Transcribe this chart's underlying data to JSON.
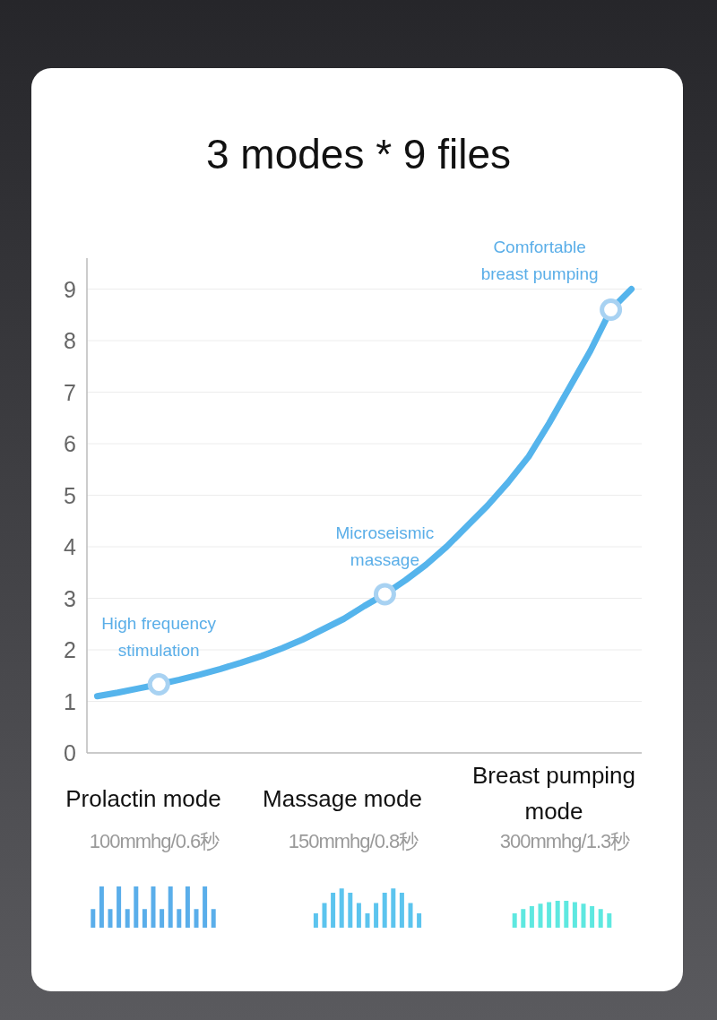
{
  "chart_data": {
    "type": "line",
    "title": "3 modes * 9 files",
    "categories": [
      null,
      null,
      null,
      null,
      null,
      null,
      null,
      null,
      null,
      null,
      null,
      null,
      null,
      null,
      null,
      null,
      null,
      null,
      null,
      null,
      null,
      null,
      null,
      null,
      null,
      null,
      null
    ],
    "series": [
      {
        "type": "line",
        "color": "#55b4ec",
        "values": [
          1.1,
          1.17,
          1.25,
          1.33,
          1.42,
          1.52,
          1.63,
          1.75,
          1.88,
          2.03,
          2.2,
          2.4,
          2.6,
          2.85,
          3.08,
          3.35,
          3.65,
          4.0,
          4.4,
          4.8,
          5.25,
          5.75,
          6.4,
          7.1,
          7.8,
          8.6,
          9.0
        ]
      },
      {
        "type": "scatter",
        "marker": "circle",
        "color": "#a8d2f2",
        "values": [
          null,
          null,
          null,
          1.33,
          null,
          null,
          null,
          null,
          null,
          null,
          null,
          null,
          null,
          null,
          3.08,
          null,
          null,
          null,
          null,
          null,
          null,
          null,
          null,
          null,
          null,
          8.6,
          null
        ],
        "value_labels": [
          null,
          null,
          null,
          "High frequency\nstimulation",
          null,
          null,
          null,
          null,
          null,
          null,
          null,
          null,
          null,
          null,
          "Microseismic\nmassage",
          null,
          null,
          null,
          null,
          null,
          null,
          null,
          null,
          null,
          null,
          "Comfortable\nbreast pumping",
          null
        ]
      }
    ],
    "ylim": [
      0,
      9.6
    ],
    "yticks": [
      0,
      1,
      2,
      3,
      4,
      5,
      6,
      7,
      8,
      9
    ],
    "grid": "y",
    "tick_labels": "y",
    "annotations": [
      "Prolactin mode",
      "100mmhg/0.6秒",
      "Massage mode",
      "150mmhg/0.8秒",
      "Breast pumping mode",
      "300mmhg/1.3秒"
    ]
  }
}
